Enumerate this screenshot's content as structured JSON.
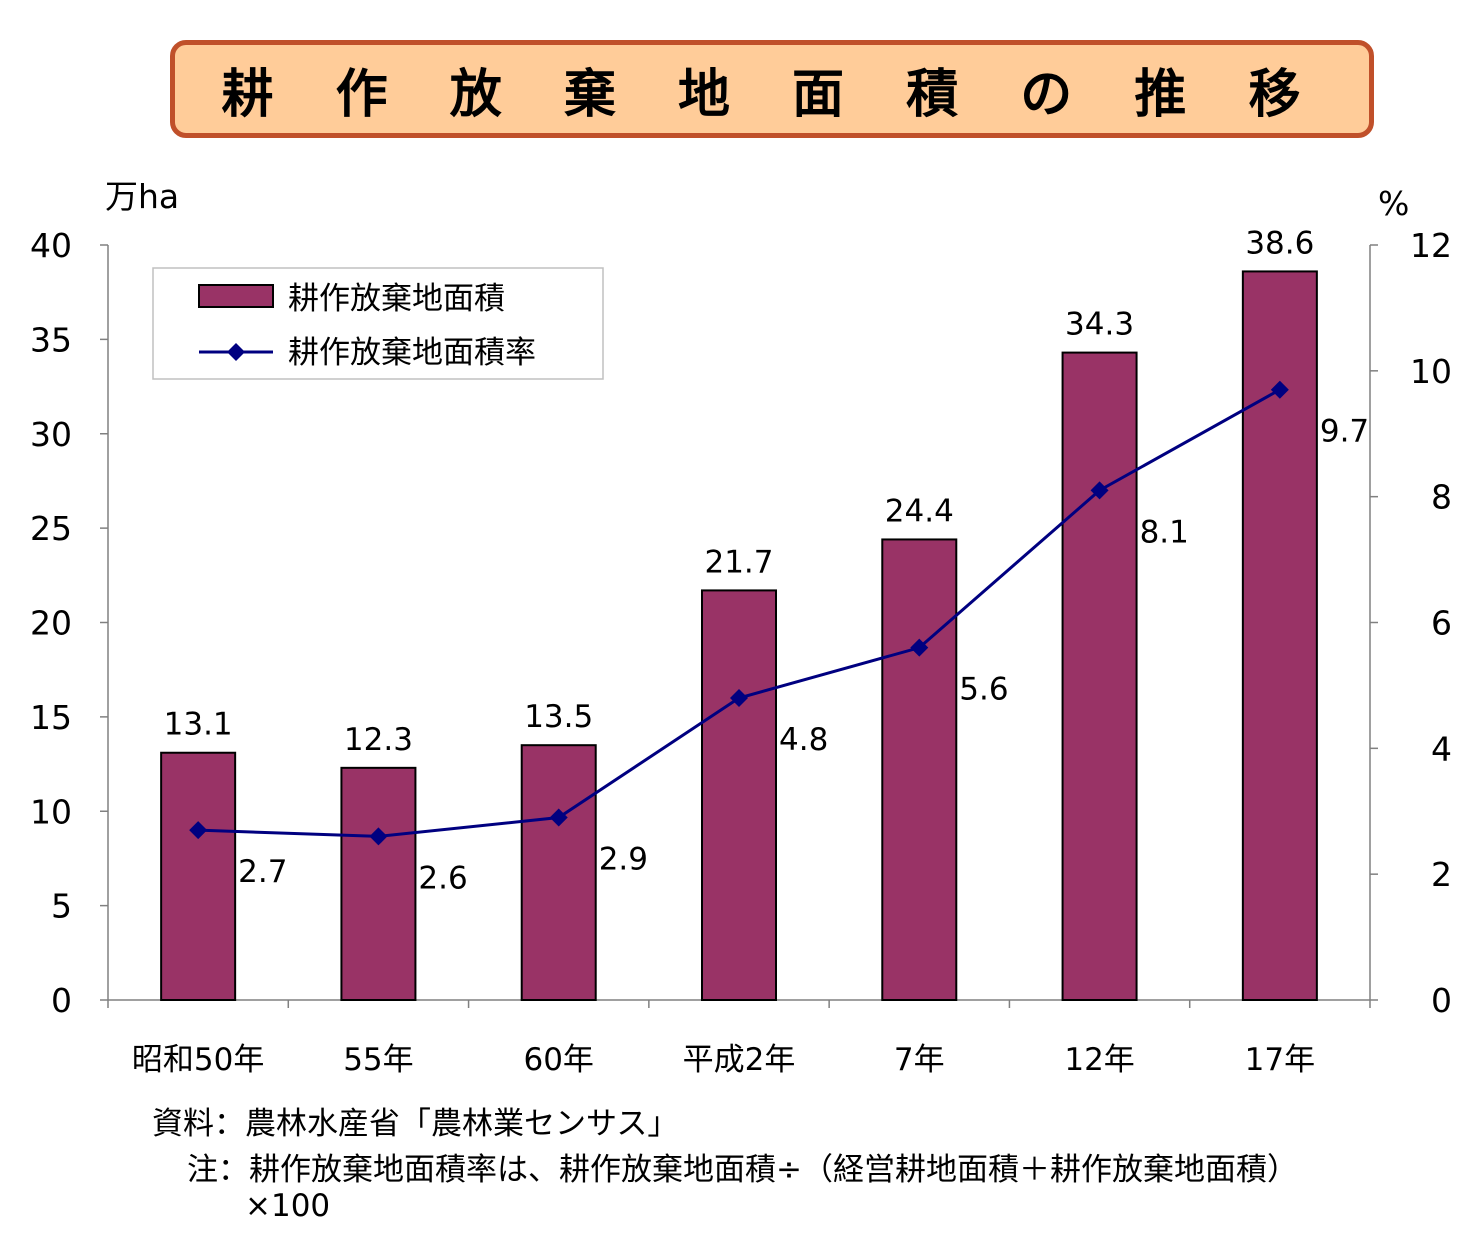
{
  "chart_data": {
    "type": "bar",
    "title": "耕 作 放 棄 地 面 積 の 推 移",
    "categories": [
      "昭和50年",
      "55年",
      "60年",
      "平成2年",
      "7年",
      "12年",
      "17年"
    ],
    "series": [
      {
        "name": "耕作放棄地面積",
        "type": "bar",
        "axis": "left",
        "color": "#993366",
        "values": [
          13.1,
          12.3,
          13.5,
          21.7,
          24.4,
          34.3,
          38.6
        ],
        "labels": [
          "13.1",
          "12.3",
          "13.5",
          "21.7",
          "24.4",
          "34.3",
          "38.6"
        ]
      },
      {
        "name": "耕作放棄地面積率",
        "type": "line",
        "axis": "right",
        "color": "#000080",
        "values": [
          2.7,
          2.6,
          2.9,
          4.8,
          5.6,
          8.1,
          9.7
        ],
        "labels": [
          "2.7",
          "2.6",
          "2.9",
          "4.8",
          "5.6",
          "8.1",
          "9.7"
        ]
      }
    ],
    "y_left": {
      "unit": "万ha",
      "ylim": [
        0,
        40
      ],
      "ticks": [
        "0",
        "5",
        "10",
        "15",
        "20",
        "25",
        "30",
        "35",
        "40"
      ]
    },
    "y_right": {
      "unit": "%",
      "ylim": [
        0,
        12
      ],
      "ticks": [
        "0",
        "2",
        "4",
        "6",
        "8",
        "10",
        "12"
      ]
    },
    "grid": false,
    "legend": "top-left"
  },
  "notes": {
    "source": "資料：農林水産省「農林業センサス」",
    "note_line1": "注：耕作放棄地面積率は、耕作放棄地面積÷（経営耕地面積＋耕作放棄地面積）",
    "note_line2": "×100"
  }
}
